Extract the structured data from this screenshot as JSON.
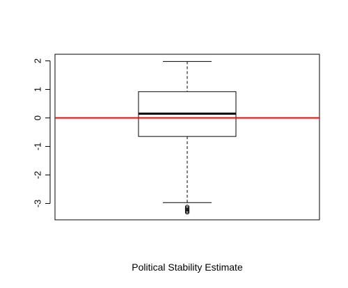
{
  "chart_data": {
    "type": "box",
    "title": "",
    "xlabel": "Political Stability Estimate",
    "ylabel": "",
    "ylim": [
      -3.5,
      2.2
    ],
    "yticks": [
      -3,
      -2,
      -1,
      0,
      1,
      2
    ],
    "ytick_labels": [
      "-3",
      "-2",
      "-1",
      "0",
      "1",
      "2"
    ],
    "grid": false,
    "box": {
      "whisker_low": -2.97,
      "q1": -0.65,
      "median": 0.15,
      "q3": 0.92,
      "whisker_high": 1.98,
      "outliers": [
        -3.12,
        -3.17,
        -3.22,
        -3.27,
        -3.31
      ]
    },
    "reference_line": {
      "y": 0,
      "color": "#ff0000"
    }
  }
}
